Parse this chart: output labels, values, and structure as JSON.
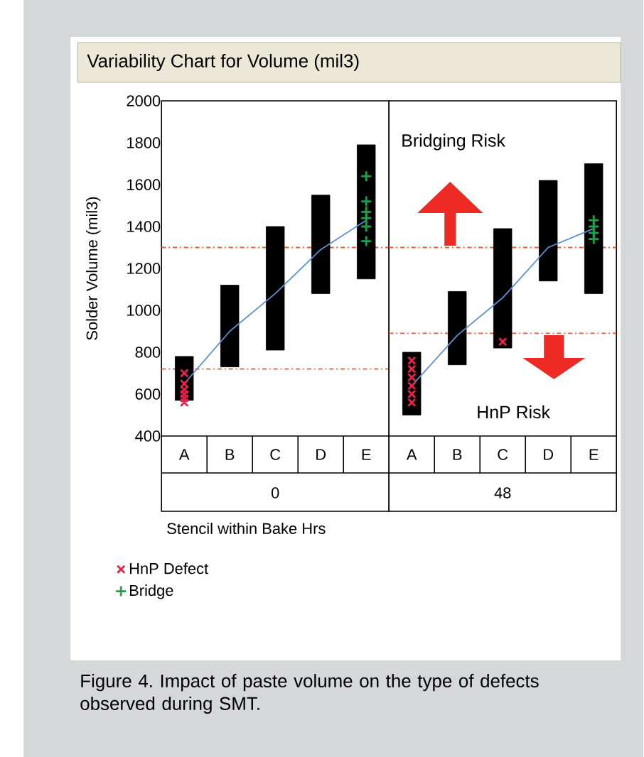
{
  "chart_data": [
    {
      "type": "bar",
      "title": "Variability Chart for Volume (mil3)",
      "xlabel": "0",
      "ylabel": "Solder Volume (mil3)",
      "categories": [
        "A",
        "B",
        "C",
        "D",
        "E"
      ],
      "series": [
        {
          "color": "#000000",
          "base": [
            570,
            730,
            810,
            1080,
            1150
          ],
          "values": [
            210,
            390,
            590,
            470,
            640
          ]
        },
        {
          "type": "line",
          "color": "#5b8fd6",
          "values": [
            650,
            900,
            1080,
            1290,
            1430
          ]
        },
        {
          "type": "scatter",
          "name": "HnP Defect",
          "color": "#e8224a",
          "marker": "cross",
          "x": [
            "A",
            "A",
            "A",
            "A",
            "A",
            "A"
          ],
          "values": [
            700,
            650,
            620,
            600,
            580,
            560
          ]
        },
        {
          "type": "scatter",
          "name": "Bridge",
          "color": "#1fa04a",
          "marker": "plus",
          "x": [
            "E",
            "E",
            "E",
            "E",
            "E",
            "E"
          ],
          "values": [
            1330,
            1400,
            1440,
            1470,
            1520,
            1640
          ]
        }
      ],
      "ylim": [
        400,
        2000
      ],
      "yticks": [
        400,
        600,
        800,
        1000,
        1200,
        1400,
        1600,
        1800,
        2000
      ],
      "ref_lines": [
        {
          "axis": "y",
          "value": 1300,
          "color": "#f05a28",
          "line_style": "dashdot"
        },
        {
          "axis": "y",
          "value": 720,
          "color": "#f05a28",
          "line_style": "dashdot"
        }
      ],
      "legend": "bottom",
      "annotations": [
        "Stencil within Bake Hrs",
        "Figure 4. Impact of paste volume on the type of defects observed during SMT."
      ]
    },
    {
      "type": "bar",
      "xlabel": "48",
      "categories": [
        "A",
        "B",
        "C",
        "D",
        "E"
      ],
      "series": [
        {
          "color": "#000000",
          "base": [
            500,
            740,
            820,
            1140,
            1080
          ],
          "values": [
            300,
            350,
            570,
            480,
            620
          ]
        },
        {
          "type": "line",
          "color": "#5b8fd6",
          "values": [
            640,
            880,
            1060,
            1300,
            1390
          ]
        },
        {
          "type": "scatter",
          "color": "#e8224a",
          "marker": "cross",
          "x": [
            "A",
            "A",
            "A",
            "A",
            "A",
            "A",
            "C"
          ],
          "values": [
            560,
            600,
            640,
            680,
            720,
            760,
            850
          ]
        },
        {
          "type": "scatter",
          "color": "#1fa04a",
          "marker": "plus",
          "x": [
            "E",
            "E",
            "E",
            "E"
          ],
          "values": [
            1340,
            1370,
            1400,
            1430
          ]
        }
      ],
      "ylim": [
        400,
        2000
      ],
      "yticks": [
        400,
        600,
        800,
        1000,
        1200,
        1400,
        1600,
        1800,
        2000
      ],
      "tick_labels": "x",
      "ref_lines": [
        {
          "axis": "y",
          "value": 1300,
          "color": "#f05a28",
          "line_style": "dashdot"
        },
        {
          "axis": "y",
          "value": 890,
          "color": "#f05a28",
          "line_style": "dashdot"
        }
      ],
      "annotations": [
        "Bridging Risk",
        "HnP Risk"
      ]
    }
  ]
}
